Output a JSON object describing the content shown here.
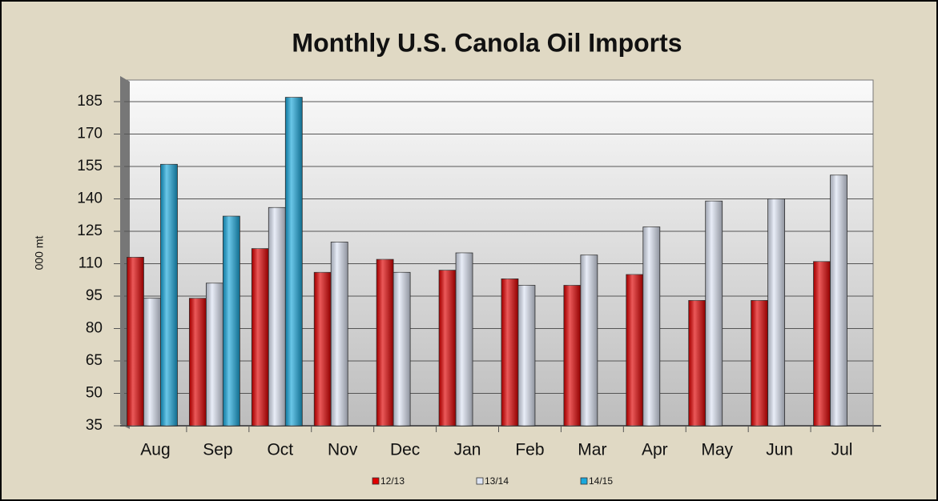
{
  "chart_data": {
    "type": "bar",
    "title": "Monthly U.S. Canola Oil Imports",
    "y_label": "000 mt",
    "categories": [
      "Aug",
      "Sep",
      "Oct",
      "Nov",
      "Dec",
      "Jan",
      "Feb",
      "Mar",
      "Apr",
      "May",
      "Jun",
      "Jul"
    ],
    "series": [
      {
        "name": "12/13",
        "color": "#e00000",
        "values": [
          113,
          94,
          117,
          106,
          112,
          107,
          103,
          100,
          105,
          93,
          93,
          111
        ]
      },
      {
        "name": "13/14",
        "color": "#dde4f4",
        "values": [
          94,
          101,
          136,
          120,
          106,
          115,
          100,
          114,
          127,
          139,
          140,
          151
        ]
      },
      {
        "name": "14/15",
        "color": "#1aa8dc",
        "values": [
          156,
          132,
          187,
          null,
          null,
          null,
          null,
          null,
          null,
          null,
          null,
          null
        ]
      }
    ],
    "ylim": [
      35,
      195
    ],
    "yticks": [
      35,
      50,
      65,
      80,
      95,
      110,
      125,
      140,
      155,
      170,
      185
    ],
    "grid": true,
    "legend": "bottom"
  }
}
